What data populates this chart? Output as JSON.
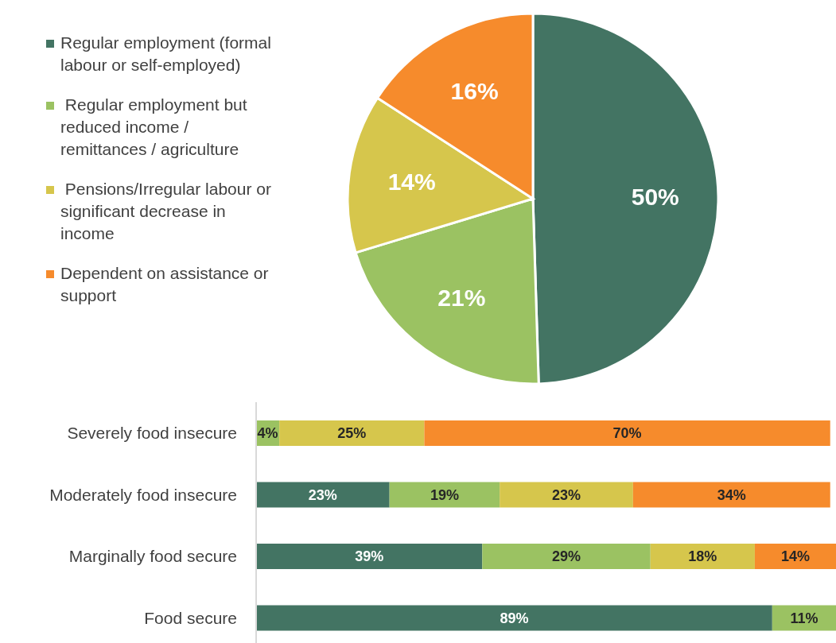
{
  "chart_data": [
    {
      "type": "pie",
      "categories": [
        "Regular employment (formal labour or self-employed)",
        " Regular employment but reduced income / remittances / agriculture",
        " Pensions/Irregular labour or significant decrease in income",
        "Dependent on assistance or support"
      ],
      "values": [
        50,
        21,
        14,
        16
      ],
      "colors": [
        "#437463",
        "#9bc262",
        "#d6c64c",
        "#f68b2c"
      ],
      "value_labels": [
        "50%",
        "21%",
        "14%",
        "16%"
      ],
      "legend": "left"
    },
    {
      "type": "bar",
      "orientation": "horizontal",
      "stacked": true,
      "tick_labels": "y",
      "categories": [
        "Severely food insecure",
        "Moderately food insecure",
        "Marginally food secure",
        "Food secure"
      ],
      "series": [
        {
          "color": "#437463",
          "values": [
            null,
            23,
            39,
            89
          ],
          "value_labels": [
            null,
            "23%",
            "39%",
            "89%"
          ]
        },
        {
          "color": "#9bc262",
          "values": [
            4,
            19,
            29,
            11
          ],
          "value_labels": [
            "4%",
            "19%",
            "29%",
            "11%"
          ]
        },
        {
          "color": "#d6c64c",
          "values": [
            25,
            23,
            18,
            null
          ],
          "value_labels": [
            "25%",
            "23%",
            "18%",
            null
          ]
        },
        {
          "color": "#f68b2c",
          "values": [
            70,
            34,
            14,
            null
          ],
          "value_labels": [
            "70%",
            "34%",
            "14%",
            null
          ]
        }
      ]
    }
  ]
}
